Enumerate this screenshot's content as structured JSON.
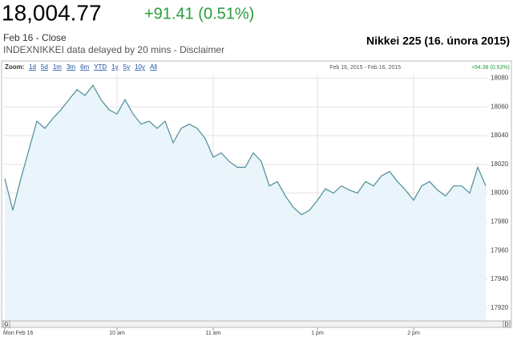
{
  "header": {
    "price": "18,004.77",
    "change": "+91.41 (0.51%)",
    "date": "Feb 16 - Close",
    "source_note": "INDEXNIKKEI data delayed by 20 mins - Disclaimer"
  },
  "toolbar": {
    "zoom_label": "Zoom:",
    "zoom_options": [
      "1d",
      "5d",
      "1m",
      "3m",
      "6m",
      "YTD",
      "1y",
      "5y",
      "10y",
      "All"
    ],
    "range": "Feb 16, 2015 - Feb 16, 2015",
    "range_change": "+94.38 (0.53%)"
  },
  "scroll_buttons": [
    "G",
    "D"
  ],
  "chart_data": {
    "type": "line",
    "title": "Nikkei 225 (16. února 2015)",
    "categories": [
      "Mon Feb 16",
      null,
      null,
      null,
      null,
      null,
      null,
      null,
      null,
      null,
      null,
      null,
      null,
      null,
      "10 am",
      null,
      null,
      null,
      null,
      null,
      null,
      null,
      null,
      null,
      null,
      null,
      "11 am",
      null,
      null,
      null,
      null,
      null,
      null,
      null,
      null,
      null,
      null,
      null,
      null,
      "1 pm",
      null,
      null,
      null,
      null,
      null,
      null,
      null,
      null,
      null,
      null,
      null,
      "2 pm",
      null,
      null,
      null,
      null,
      null,
      null,
      null,
      null,
      null
    ],
    "series": [
      {
        "name": "INDEXNIKKEI",
        "color": "#4e8e96",
        "fill": "#e9f4fb",
        "values": [
          18010,
          17988,
          18010,
          18030,
          18050,
          18045,
          18052,
          18058,
          18065,
          18072,
          18068,
          18075,
          18065,
          18058,
          18055,
          18065,
          18055,
          18048,
          18050,
          18045,
          18050,
          18035,
          18045,
          18048,
          18045,
          18038,
          18025,
          18028,
          18022,
          18018,
          18018,
          18028,
          18022,
          18005,
          18008,
          17998,
          17990,
          17985,
          17988,
          17995,
          18003,
          18000,
          18005,
          18002,
          18000,
          18008,
          18005,
          18012,
          18015,
          18008,
          18002,
          17995,
          18005,
          18008,
          18002,
          17998,
          18005,
          18005,
          18000,
          18018,
          18005
        ]
      }
    ],
    "ylim": [
      17911,
      18083
    ],
    "yticks": [
      17920,
      17940,
      17960,
      17980,
      18000,
      18020,
      18040,
      18060,
      18080
    ],
    "grid": true
  }
}
